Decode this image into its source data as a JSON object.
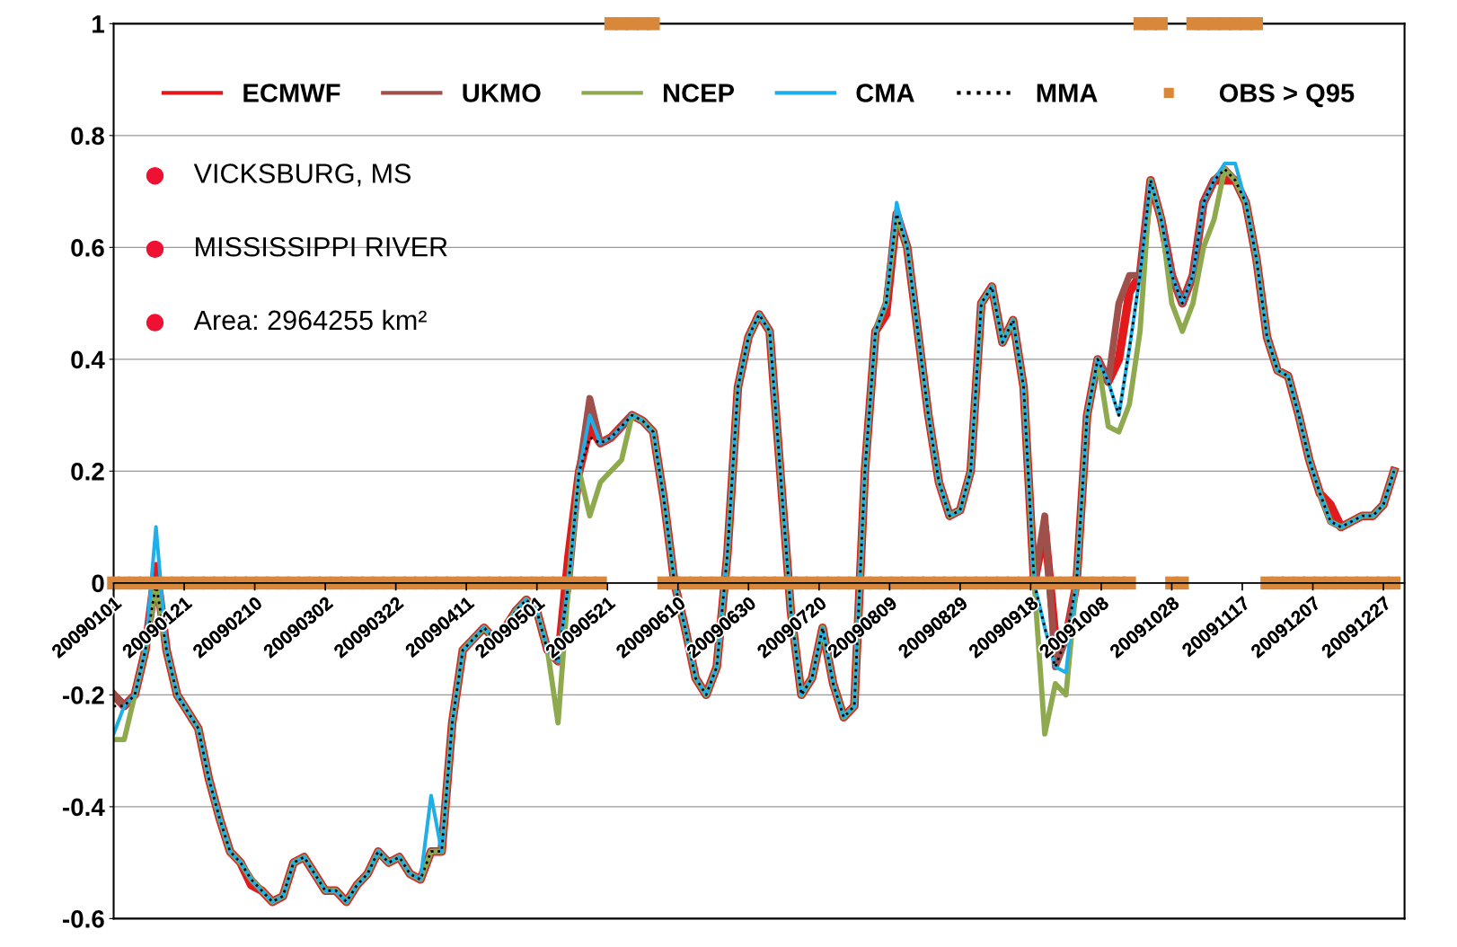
{
  "chart_data": {
    "type": "line",
    "x": [
      "2009-01-01",
      "2009-01-04",
      "2009-01-07",
      "2009-01-10",
      "2009-01-13",
      "2009-01-16",
      "2009-01-19",
      "2009-01-22",
      "2009-01-25",
      "2009-01-28",
      "2009-01-31",
      "2009-02-03",
      "2009-02-06",
      "2009-02-09",
      "2009-02-12",
      "2009-02-15",
      "2009-02-18",
      "2009-02-21",
      "2009-02-24",
      "2009-02-27",
      "2009-03-02",
      "2009-03-05",
      "2009-03-08",
      "2009-03-11",
      "2009-03-14",
      "2009-03-17",
      "2009-03-20",
      "2009-03-23",
      "2009-03-26",
      "2009-03-29",
      "2009-04-01",
      "2009-04-04",
      "2009-04-07",
      "2009-04-10",
      "2009-04-13",
      "2009-04-16",
      "2009-04-19",
      "2009-04-22",
      "2009-04-25",
      "2009-04-28",
      "2009-05-01",
      "2009-05-04",
      "2009-05-07",
      "2009-05-10",
      "2009-05-13",
      "2009-05-16",
      "2009-05-19",
      "2009-05-22",
      "2009-05-25",
      "2009-05-28",
      "2009-05-31",
      "2009-06-03",
      "2009-06-06",
      "2009-06-09",
      "2009-06-12",
      "2009-06-15",
      "2009-06-18",
      "2009-06-21",
      "2009-06-24",
      "2009-06-27",
      "2009-06-30",
      "2009-07-03",
      "2009-07-06",
      "2009-07-09",
      "2009-07-12",
      "2009-07-15",
      "2009-07-18",
      "2009-07-21",
      "2009-07-24",
      "2009-07-27",
      "2009-07-30",
      "2009-08-02",
      "2009-08-05",
      "2009-08-08",
      "2009-08-11",
      "2009-08-14",
      "2009-08-17",
      "2009-08-20",
      "2009-08-23",
      "2009-08-26",
      "2009-08-29",
      "2009-09-01",
      "2009-09-04",
      "2009-09-07",
      "2009-09-10",
      "2009-09-13",
      "2009-09-16",
      "2009-09-19",
      "2009-09-22",
      "2009-09-25",
      "2009-09-28",
      "2009-10-01",
      "2009-10-04",
      "2009-10-07",
      "2009-10-10",
      "2009-10-13",
      "2009-10-16",
      "2009-10-19",
      "2009-10-22",
      "2009-10-25",
      "2009-10-28",
      "2009-10-31",
      "2009-11-03",
      "2009-11-06",
      "2009-11-09",
      "2009-11-12",
      "2009-11-15",
      "2009-11-18",
      "2009-11-21",
      "2009-11-24",
      "2009-11-27",
      "2009-11-30",
      "2009-12-03",
      "2009-12-06",
      "2009-12-09",
      "2009-12-12",
      "2009-12-15",
      "2009-12-18",
      "2009-12-21",
      "2009-12-24",
      "2009-12-27",
      "2009-12-30"
    ],
    "series": [
      {
        "name": "ECMWF",
        "color": "#e31a1c",
        "line_style": "solid",
        "values": [
          -0.2,
          -0.22,
          -0.2,
          -0.12,
          0.03,
          -0.12,
          -0.2,
          -0.23,
          -0.26,
          -0.35,
          -0.42,
          -0.48,
          -0.5,
          -0.54,
          -0.55,
          -0.57,
          -0.56,
          -0.5,
          -0.49,
          -0.52,
          -0.55,
          -0.55,
          -0.57,
          -0.54,
          -0.52,
          -0.48,
          -0.5,
          -0.49,
          -0.52,
          -0.53,
          -0.48,
          -0.48,
          -0.25,
          -0.12,
          -0.1,
          -0.08,
          -0.1,
          -0.08,
          -0.05,
          -0.03,
          -0.05,
          -0.12,
          -0.14,
          0.05,
          0.2,
          0.28,
          0.25,
          0.26,
          0.28,
          0.3,
          0.29,
          0.27,
          0.15,
          0.0,
          -0.08,
          -0.17,
          -0.2,
          -0.15,
          0.05,
          0.35,
          0.44,
          0.48,
          0.45,
          0.2,
          -0.05,
          -0.2,
          -0.17,
          -0.08,
          -0.18,
          -0.24,
          -0.22,
          0.2,
          0.45,
          0.48,
          0.66,
          0.6,
          0.45,
          0.3,
          0.18,
          0.12,
          0.13,
          0.2,
          0.5,
          0.53,
          0.43,
          0.47,
          0.35,
          0.0,
          0.1,
          -0.1,
          -0.1,
          0.0,
          0.3,
          0.4,
          0.36,
          0.4,
          0.52,
          0.55,
          0.72,
          0.65,
          0.55,
          0.5,
          0.55,
          0.68,
          0.72,
          0.72,
          0.72,
          0.68,
          0.58,
          0.44,
          0.38,
          0.37,
          0.3,
          0.22,
          0.16,
          0.14,
          0.1,
          0.11,
          0.12,
          0.12,
          0.14,
          0.2
        ]
      },
      {
        "name": "UKMO",
        "color": "#a0504a",
        "line_style": "solid",
        "values": [
          -0.2,
          -0.22,
          -0.2,
          -0.12,
          0.0,
          -0.12,
          -0.2,
          -0.23,
          -0.26,
          -0.35,
          -0.42,
          -0.48,
          -0.5,
          -0.53,
          -0.55,
          -0.57,
          -0.56,
          -0.5,
          -0.49,
          -0.52,
          -0.55,
          -0.55,
          -0.57,
          -0.54,
          -0.52,
          -0.48,
          -0.5,
          -0.49,
          -0.52,
          -0.53,
          -0.48,
          -0.48,
          -0.25,
          -0.12,
          -0.1,
          -0.08,
          -0.1,
          -0.08,
          -0.05,
          -0.03,
          -0.05,
          -0.12,
          -0.14,
          0.0,
          0.2,
          0.33,
          0.25,
          0.26,
          0.28,
          0.3,
          0.29,
          0.27,
          0.15,
          0.0,
          -0.08,
          -0.17,
          -0.2,
          -0.15,
          0.05,
          0.35,
          0.44,
          0.48,
          0.45,
          0.2,
          -0.05,
          -0.2,
          -0.17,
          -0.08,
          -0.18,
          -0.24,
          -0.22,
          0.2,
          0.45,
          0.5,
          0.66,
          0.6,
          0.45,
          0.3,
          0.18,
          0.12,
          0.13,
          0.2,
          0.5,
          0.53,
          0.43,
          0.47,
          0.35,
          0.0,
          0.12,
          -0.15,
          -0.1,
          0.0,
          0.3,
          0.4,
          0.36,
          0.5,
          0.55,
          0.55,
          0.72,
          0.65,
          0.55,
          0.5,
          0.55,
          0.68,
          0.72,
          0.74,
          0.72,
          0.68,
          0.58,
          0.44,
          0.38,
          0.37,
          0.3,
          0.22,
          0.16,
          0.11,
          0.1,
          0.11,
          0.12,
          0.12,
          0.14,
          0.2
        ]
      },
      {
        "name": "NCEP",
        "color": "#8faa4e",
        "line_style": "solid",
        "values": [
          -0.28,
          -0.28,
          -0.2,
          -0.12,
          0.0,
          -0.12,
          -0.2,
          -0.23,
          -0.26,
          -0.35,
          -0.42,
          -0.48,
          -0.5,
          -0.53,
          -0.55,
          -0.57,
          -0.56,
          -0.5,
          -0.49,
          -0.52,
          -0.55,
          -0.55,
          -0.57,
          -0.54,
          -0.52,
          -0.48,
          -0.5,
          -0.49,
          -0.52,
          -0.53,
          -0.48,
          -0.48,
          -0.25,
          -0.12,
          -0.1,
          -0.08,
          -0.1,
          -0.08,
          -0.05,
          -0.03,
          -0.05,
          -0.12,
          -0.25,
          0.0,
          0.2,
          0.12,
          0.18,
          0.2,
          0.22,
          0.3,
          0.29,
          0.27,
          0.15,
          0.0,
          -0.08,
          -0.17,
          -0.2,
          -0.15,
          0.05,
          0.35,
          0.44,
          0.48,
          0.45,
          0.2,
          -0.05,
          -0.2,
          -0.17,
          -0.08,
          -0.18,
          -0.24,
          -0.22,
          0.2,
          0.45,
          0.5,
          0.66,
          0.6,
          0.45,
          0.3,
          0.18,
          0.12,
          0.13,
          0.2,
          0.5,
          0.53,
          0.43,
          0.47,
          0.35,
          0.0,
          -0.27,
          -0.18,
          -0.2,
          0.0,
          0.3,
          0.4,
          0.28,
          0.27,
          0.32,
          0.45,
          0.72,
          0.65,
          0.5,
          0.45,
          0.5,
          0.6,
          0.65,
          0.74,
          0.72,
          0.68,
          0.58,
          0.44,
          0.38,
          0.37,
          0.3,
          0.22,
          0.16,
          0.11,
          0.1,
          0.11,
          0.12,
          0.12,
          0.14,
          0.2
        ]
      },
      {
        "name": "CMA",
        "color": "#1eaee8",
        "line_style": "solid",
        "values": [
          -0.27,
          -0.22,
          -0.2,
          -0.12,
          0.1,
          -0.12,
          -0.2,
          -0.23,
          -0.26,
          -0.35,
          -0.42,
          -0.48,
          -0.5,
          -0.53,
          -0.55,
          -0.57,
          -0.56,
          -0.5,
          -0.49,
          -0.52,
          -0.55,
          -0.55,
          -0.57,
          -0.54,
          -0.52,
          -0.48,
          -0.5,
          -0.49,
          -0.52,
          -0.53,
          -0.38,
          -0.48,
          -0.25,
          -0.12,
          -0.1,
          -0.08,
          -0.1,
          -0.08,
          -0.05,
          -0.03,
          -0.05,
          -0.12,
          -0.14,
          0.0,
          0.2,
          0.3,
          0.25,
          0.26,
          0.28,
          0.3,
          0.29,
          0.27,
          0.15,
          0.0,
          -0.08,
          -0.17,
          -0.2,
          -0.15,
          0.05,
          0.35,
          0.44,
          0.48,
          0.45,
          0.2,
          -0.05,
          -0.2,
          -0.17,
          -0.08,
          -0.18,
          -0.24,
          -0.22,
          0.2,
          0.45,
          0.5,
          0.68,
          0.6,
          0.45,
          0.3,
          0.18,
          0.12,
          0.13,
          0.2,
          0.5,
          0.53,
          0.43,
          0.47,
          0.35,
          0.0,
          -0.08,
          -0.15,
          -0.16,
          0.0,
          0.3,
          0.4,
          0.36,
          0.3,
          0.42,
          0.55,
          0.72,
          0.65,
          0.55,
          0.5,
          0.55,
          0.68,
          0.72,
          0.75,
          0.75,
          0.68,
          0.58,
          0.44,
          0.38,
          0.37,
          0.3,
          0.22,
          0.16,
          0.11,
          0.1,
          0.11,
          0.12,
          0.12,
          0.14,
          0.2
        ]
      },
      {
        "name": "MMA",
        "color": "#000000",
        "line_style": "dotted",
        "values": [
          -0.22,
          -0.22,
          -0.2,
          -0.12,
          0.0,
          -0.12,
          -0.2,
          -0.23,
          -0.26,
          -0.35,
          -0.42,
          -0.48,
          -0.5,
          -0.53,
          -0.55,
          -0.57,
          -0.56,
          -0.5,
          -0.49,
          -0.52,
          -0.55,
          -0.55,
          -0.57,
          -0.54,
          -0.52,
          -0.48,
          -0.5,
          -0.49,
          -0.52,
          -0.53,
          -0.48,
          -0.48,
          -0.25,
          -0.12,
          -0.1,
          -0.08,
          -0.1,
          -0.08,
          -0.05,
          -0.03,
          -0.05,
          -0.12,
          -0.14,
          0.0,
          0.2,
          0.26,
          0.25,
          0.26,
          0.28,
          0.3,
          0.29,
          0.27,
          0.15,
          0.0,
          -0.08,
          -0.17,
          -0.2,
          -0.15,
          0.05,
          0.35,
          0.44,
          0.48,
          0.45,
          0.2,
          -0.05,
          -0.2,
          -0.17,
          -0.08,
          -0.18,
          -0.24,
          -0.22,
          0.2,
          0.45,
          0.5,
          0.66,
          0.6,
          0.45,
          0.3,
          0.18,
          0.12,
          0.13,
          0.2,
          0.5,
          0.53,
          0.43,
          0.47,
          0.35,
          0.0,
          -0.08,
          -0.15,
          -0.1,
          0.0,
          0.3,
          0.4,
          0.36,
          0.3,
          0.42,
          0.55,
          0.72,
          0.65,
          0.55,
          0.5,
          0.55,
          0.68,
          0.72,
          0.74,
          0.72,
          0.68,
          0.58,
          0.44,
          0.38,
          0.37,
          0.3,
          0.22,
          0.16,
          0.11,
          0.1,
          0.11,
          0.12,
          0.12,
          0.14,
          0.2
        ]
      },
      {
        "name": "OBS > Q95",
        "color": "#d9883b",
        "type": "scatter",
        "marker": "square",
        "values": [
          0,
          0,
          0,
          0,
          0,
          0,
          0,
          0,
          0,
          0,
          0,
          0,
          0,
          0,
          0,
          0,
          0,
          0,
          0,
          0,
          0,
          0,
          0,
          0,
          0,
          0,
          0,
          0,
          0,
          0,
          0,
          0,
          0,
          0,
          0,
          0,
          0,
          0,
          0,
          0,
          0,
          0,
          0,
          0,
          0,
          0,
          0,
          1,
          1,
          1,
          1,
          1,
          0,
          0,
          0,
          0,
          0,
          0,
          0,
          0,
          0,
          0,
          0,
          0,
          0,
          0,
          0,
          0,
          0,
          0,
          0,
          0,
          0,
          0,
          0,
          0,
          0,
          0,
          0,
          0,
          0,
          0,
          0,
          0,
          0,
          0,
          0,
          0,
          0,
          0,
          0,
          0,
          0,
          0,
          0,
          0,
          0,
          1,
          1,
          1,
          0,
          0,
          1,
          1,
          1,
          1,
          1,
          1,
          1,
          0,
          0,
          0,
          0,
          0,
          0,
          0,
          0,
          0,
          0,
          0,
          0,
          0
        ]
      }
    ],
    "xlim": [
      "2009-01-01",
      "2010-01-02"
    ],
    "xticks": [
      {
        "value": "2009-01-01",
        "label": "20090101"
      },
      {
        "value": "2009-01-21",
        "label": "20090121"
      },
      {
        "value": "2009-02-10",
        "label": "20090210"
      },
      {
        "value": "2009-03-02",
        "label": "20090302"
      },
      {
        "value": "2009-03-22",
        "label": "20090322"
      },
      {
        "value": "2009-04-11",
        "label": "20090411"
      },
      {
        "value": "2009-05-01",
        "label": "20090501"
      },
      {
        "value": "2009-05-21",
        "label": "20090521"
      },
      {
        "value": "2009-06-10",
        "label": "20090610"
      },
      {
        "value": "2009-06-30",
        "label": "20090630"
      },
      {
        "value": "2009-07-20",
        "label": "20090720"
      },
      {
        "value": "2009-08-09",
        "label": "20090809"
      },
      {
        "value": "2009-08-29",
        "label": "20090829"
      },
      {
        "value": "2009-09-18",
        "label": "20090918"
      },
      {
        "value": "2009-10-08",
        "label": "20091008"
      },
      {
        "value": "2009-10-28",
        "label": "20091028"
      },
      {
        "value": "2009-11-17",
        "label": "20091117"
      },
      {
        "value": "2009-12-07",
        "label": "20091207"
      },
      {
        "value": "2009-12-27",
        "label": "20091227"
      }
    ],
    "ylim": [
      -0.6,
      1
    ],
    "yticks": [
      -0.6,
      -0.4,
      -0.2,
      0,
      0.2,
      0.4,
      0.6,
      0.8,
      1
    ],
    "grid": "y",
    "legend": "top",
    "annotations": [
      "VICKSBURG, MS",
      "MISSISSIPPI RIVER",
      "Area: 2964255 km²"
    ]
  }
}
